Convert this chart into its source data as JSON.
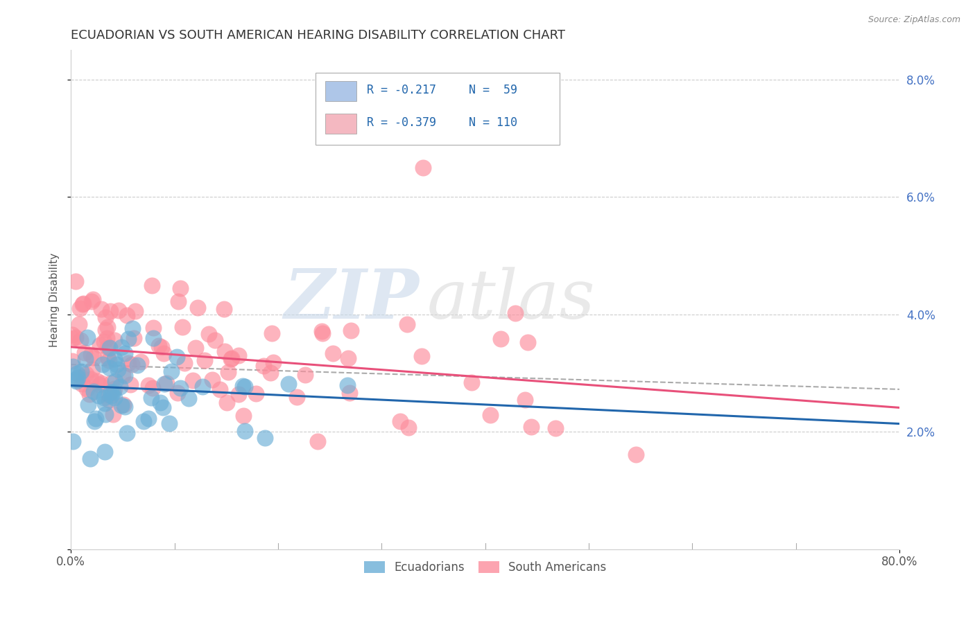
{
  "title": "ECUADORIAN VS SOUTH AMERICAN HEARING DISABILITY CORRELATION CHART",
  "source": "Source: ZipAtlas.com",
  "ylabel": "Hearing Disability",
  "x_min": 0.0,
  "x_max": 0.8,
  "y_min": 0.0,
  "y_max": 0.085,
  "x_ticks": [
    0.0,
    0.8
  ],
  "x_tick_labels": [
    "0.0%",
    "80.0%"
  ],
  "y_ticks": [
    0.0,
    0.02,
    0.04,
    0.06,
    0.08
  ],
  "y_tick_labels": [
    "",
    "2.0%",
    "4.0%",
    "6.0%",
    "8.0%"
  ],
  "legend_entries": [
    {
      "label_r": "R = -0.217",
      "label_n": "N =  59",
      "color": "#aec6e8"
    },
    {
      "label_r": "R = -0.379",
      "label_n": "N = 110",
      "color": "#f4b8c1"
    }
  ],
  "legend_labels_bottom": [
    "Ecuadorians",
    "South Americans"
  ],
  "ecuadorian_color": "#6baed6",
  "south_american_color": "#fc8d9c",
  "background_color": "#ffffff",
  "grid_color": "#cccccc",
  "watermark_zip": "ZIP",
  "watermark_atlas": "atlas",
  "title_fontsize": 13,
  "axis_label_fontsize": 11,
  "tick_fontsize": 12,
  "right_tick_color": "#4472c4"
}
